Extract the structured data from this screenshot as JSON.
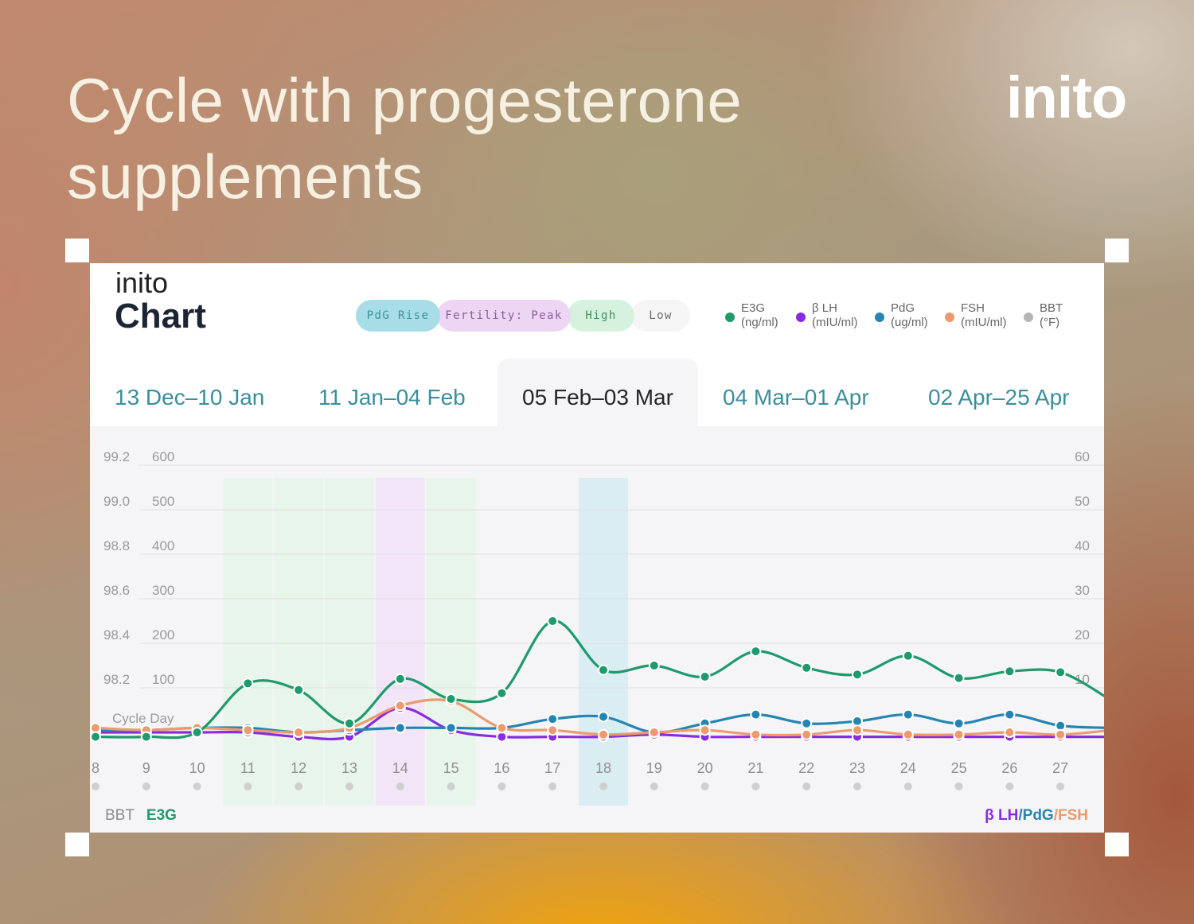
{
  "header": {
    "title": "Cycle with progesterone supplements",
    "brand": "inito"
  },
  "card": {
    "logo": "inito",
    "title": "Chart",
    "pills": [
      {
        "label": "PdG Rise",
        "bg": "#a6dde6",
        "color": "#3e8f9c"
      },
      {
        "label": "Fertility: Peak",
        "bg": "#ecd6f4",
        "color": "#8a5c9e"
      },
      {
        "label": "High",
        "bg": "#d7f1df",
        "color": "#3d8f5b"
      },
      {
        "label": "Low",
        "bg": "#f5f5f5",
        "color": "#6a6a6a"
      }
    ],
    "legend": [
      {
        "name": "E3G",
        "unit": "(ng/ml)",
        "color": "#1e9a6c"
      },
      {
        "name": "β LH",
        "unit": "(mIU/ml)",
        "color": "#8a2be2"
      },
      {
        "name": "PdG",
        "unit": "(ug/ml)",
        "color": "#2585b2"
      },
      {
        "name": "FSH",
        "unit": "(mIU/ml)",
        "color": "#ec9a6e"
      },
      {
        "name": "BBT",
        "unit": "(°F)",
        "color": "#b6b6b6"
      }
    ],
    "tabs": [
      {
        "label": "13 Dec–10 Jan",
        "active": false
      },
      {
        "label": "11 Jan–04 Feb",
        "active": false
      },
      {
        "label": "05 Feb–03 Mar",
        "active": true
      },
      {
        "label": "04 Mar–01 Apr",
        "active": false
      },
      {
        "label": "02 Apr–25 Apr",
        "active": false
      }
    ],
    "axis_footer": {
      "bbt": "BBT",
      "e3g": "E3G",
      "lh": "β LH",
      "pdg": "PdG",
      "fsh": "FSH",
      "slash": "/"
    }
  },
  "chart_data": {
    "type": "line",
    "x_label": "Cycle Day",
    "x": [
      8,
      9,
      10,
      11,
      12,
      13,
      14,
      15,
      16,
      17,
      18,
      19,
      20,
      21,
      22,
      23,
      24,
      25,
      26,
      27,
      28
    ],
    "x_tick_labels": [
      "8",
      "9",
      "10",
      "11",
      "12",
      "13",
      "14",
      "15",
      "16",
      "17",
      "18",
      "19",
      "20",
      "21",
      "22",
      "23",
      "24",
      "25",
      "26",
      "27"
    ],
    "left_axis_bbt": {
      "ticks": [
        "99.2",
        "99.0",
        "98.8",
        "98.6",
        "98.4",
        "98.2"
      ],
      "range": [
        98.0,
        99.2
      ]
    },
    "left_axis_e3g": {
      "ticks": [
        "600",
        "500",
        "400",
        "300",
        "200",
        "100"
      ],
      "range": [
        -100,
        600
      ]
    },
    "right_axis": {
      "ticks": [
        "60",
        "50",
        "40",
        "30",
        "20",
        "10"
      ],
      "range": [
        -10,
        60
      ]
    },
    "highlight_days": [
      {
        "day": 11,
        "color": "#e2f5e6"
      },
      {
        "day": 12,
        "color": "#e2f5e6"
      },
      {
        "day": 13,
        "color": "#e2f5e6"
      },
      {
        "day": 14,
        "color": "#f1def7"
      },
      {
        "day": 15,
        "color": "#e2f5e6"
      },
      {
        "day": 18,
        "color": "#cfeaf1"
      }
    ],
    "series": [
      {
        "name": "E3G",
        "axis": "e3g",
        "color": "#1e9a6c",
        "values": [
          -10,
          -10,
          0,
          110,
          95,
          20,
          120,
          75,
          88,
          250,
          140,
          150,
          125,
          182,
          145,
          130,
          172,
          122,
          137,
          135,
          72
        ]
      },
      {
        "name": "β LH",
        "axis": "right",
        "color": "#8a2be2",
        "values": [
          0,
          0,
          0,
          0,
          -1,
          -1,
          5.5,
          0.5,
          -1,
          -1,
          -1,
          -0.5,
          -1,
          -1,
          -1,
          -1,
          -1,
          -1,
          -1,
          -1,
          -1
        ]
      },
      {
        "name": "PdG",
        "axis": "right",
        "color": "#2585b2",
        "values": [
          0.5,
          0.5,
          1,
          1,
          0,
          0.5,
          1,
          1,
          1,
          3,
          3.5,
          0,
          2,
          4,
          2,
          2.5,
          4,
          2,
          4,
          1.5,
          1
        ]
      },
      {
        "name": "FSH",
        "axis": "right",
        "color": "#ec9a6e",
        "values": [
          1,
          0.5,
          1,
          0.5,
          0,
          1,
          6,
          7,
          1,
          0.5,
          -0.5,
          0,
          0.5,
          -0.5,
          -0.5,
          0.5,
          -0.5,
          -0.5,
          0,
          -0.5,
          0.5
        ]
      }
    ]
  }
}
